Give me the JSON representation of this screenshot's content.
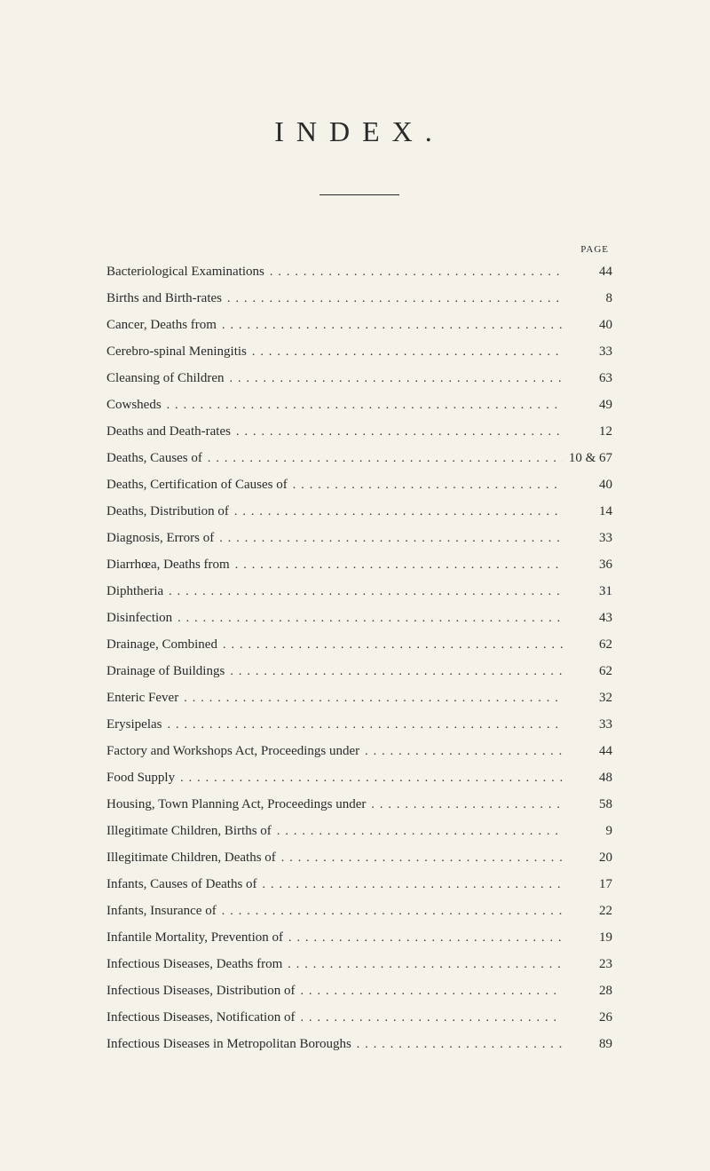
{
  "title": "INDEX.",
  "page_header": "PAGE",
  "style": {
    "background_color": "#f5f2ea",
    "text_color": "#2a2a2a",
    "title_fontsize": 32,
    "title_letterspacing": 14,
    "body_fontsize": 15,
    "header_fontsize": 11,
    "rule_width": 90,
    "entry_spacing": 10.5,
    "page_col_width": 56
  },
  "entries": [
    {
      "label": "Bacteriological Examinations",
      "page": "44"
    },
    {
      "label": "Births and Birth-rates",
      "page": "8"
    },
    {
      "label": "Cancer, Deaths from",
      "page": "40"
    },
    {
      "label": "Cerebro-spinal Meningitis",
      "page": "33"
    },
    {
      "label": "Cleansing of Children",
      "page": "63"
    },
    {
      "label": "Cowsheds",
      "page": "49"
    },
    {
      "label": "Deaths and Death-rates",
      "page": "12"
    },
    {
      "label": "Deaths, Causes of",
      "page": "10 & 67"
    },
    {
      "label": "Deaths, Certification of Causes of",
      "page": "40"
    },
    {
      "label": "Deaths, Distribution of",
      "page": "14"
    },
    {
      "label": "Diagnosis, Errors of",
      "page": "33"
    },
    {
      "label": "Diarrhœa, Deaths from",
      "page": "36"
    },
    {
      "label": "Diphtheria",
      "page": "31"
    },
    {
      "label": "Disinfection",
      "page": "43"
    },
    {
      "label": "Drainage, Combined",
      "page": "62"
    },
    {
      "label": "Drainage of Buildings",
      "page": "62"
    },
    {
      "label": "Enteric Fever",
      "page": "32"
    },
    {
      "label": "Erysipelas",
      "page": "33"
    },
    {
      "label": "Factory and Workshops Act, Proceedings under",
      "page": "44"
    },
    {
      "label": "Food Supply",
      "page": "48"
    },
    {
      "label": "Housing, Town Planning Act, Proceedings under",
      "page": "58"
    },
    {
      "label": "Illegitimate Children, Births of",
      "page": "9"
    },
    {
      "label": "Illegitimate Children, Deaths of",
      "page": "20"
    },
    {
      "label": "Infants, Causes of Deaths of",
      "page": "17"
    },
    {
      "label": "Infants, Insurance of",
      "page": "22"
    },
    {
      "label": "Infantile Mortality, Prevention of",
      "page": "19"
    },
    {
      "label": "Infectious Diseases, Deaths from",
      "page": "23"
    },
    {
      "label": "Infectious Diseases, Distribution of",
      "page": "28"
    },
    {
      "label": "Infectious Diseases, Notification of",
      "page": "26"
    },
    {
      "label": "Infectious Diseases in Metropolitan Boroughs",
      "page": "89"
    }
  ]
}
